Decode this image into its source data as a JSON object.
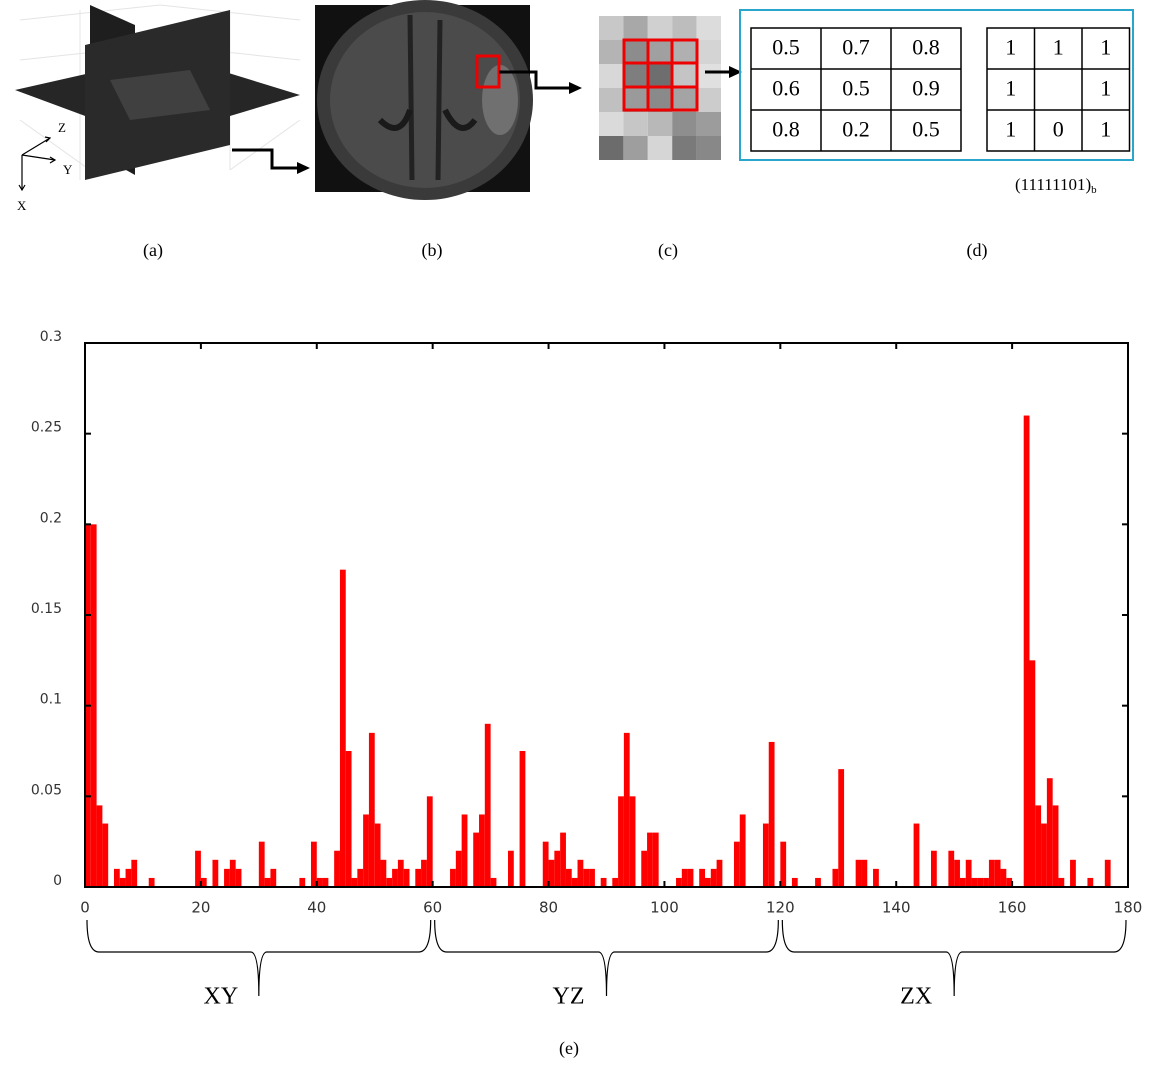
{
  "figure": {
    "captions": [
      "(a)",
      "(b)",
      "(c)",
      "(d)",
      "(e)"
    ],
    "axes3d": [
      "Z",
      "Y",
      "X"
    ],
    "weight_matrix": [
      [
        "0.5",
        "0.7",
        "0.8"
      ],
      [
        "0.6",
        "0.5",
        "0.9"
      ],
      [
        "0.8",
        "0.2",
        "0.5"
      ]
    ],
    "binary_matrix": [
      [
        "1",
        "1",
        "1"
      ],
      [
        "1",
        null,
        "1"
      ],
      [
        "1",
        "0",
        "1"
      ]
    ],
    "binary_code": "(11111101)",
    "binary_subscript": "b"
  },
  "chart_data": {
    "type": "histogram",
    "color": "#ff0000",
    "bins": [
      0,
      1,
      2,
      3,
      4,
      5,
      6,
      7,
      8,
      9,
      10,
      11,
      12,
      13,
      14,
      15,
      16,
      17,
      18,
      19,
      20,
      21,
      22,
      23,
      24,
      25,
      26,
      27,
      28,
      29,
      30,
      31,
      32,
      33,
      34,
      35,
      36,
      37,
      38,
      39,
      40,
      41,
      42,
      43,
      44,
      45,
      46,
      47,
      48,
      49,
      50,
      51,
      52,
      53,
      54,
      55,
      56,
      57,
      58,
      59,
      60,
      61,
      62,
      63,
      64,
      65,
      66,
      67,
      68,
      69,
      70,
      71,
      72,
      73,
      74,
      75,
      76,
      77,
      78,
      79,
      80,
      81,
      82,
      83,
      84,
      85,
      86,
      87,
      88,
      89,
      90,
      91,
      92,
      93,
      94,
      95,
      96,
      97,
      98,
      99,
      100,
      101,
      102,
      103,
      104,
      105,
      106,
      107,
      108,
      109,
      110,
      111,
      112,
      113,
      114,
      115,
      116,
      117,
      118,
      119,
      120,
      121,
      122,
      123,
      124,
      125,
      126,
      127,
      128,
      129,
      130,
      131,
      132,
      133,
      134,
      135,
      136,
      137,
      138,
      139,
      140,
      141,
      142,
      143,
      144,
      145,
      146,
      147,
      148,
      149,
      150,
      151,
      152,
      153,
      154,
      155,
      156,
      157,
      158,
      159,
      160,
      161,
      162,
      163,
      164,
      165,
      166,
      167,
      168,
      169,
      170,
      171,
      172,
      173,
      174,
      175,
      176,
      177,
      178,
      179,
      180
    ],
    "values": [
      0.2,
      0.2,
      0.045,
      0.035,
      0,
      0.01,
      0.005,
      0.01,
      0.015,
      0,
      0,
      0.005,
      0,
      0,
      0,
      0,
      0,
      0,
      0,
      0.02,
      0.005,
      0,
      0.015,
      0,
      0.01,
      0.015,
      0.01,
      0,
      0,
      0,
      0.025,
      0.005,
      0.01,
      0,
      0,
      0,
      0,
      0.005,
      0,
      0.025,
      0.005,
      0.005,
      0,
      0.02,
      0.175,
      0.075,
      0.005,
      0.01,
      0.04,
      0.085,
      0.035,
      0.015,
      0.005,
      0.01,
      0.015,
      0.01,
      0,
      0.01,
      0.015,
      0.05,
      0,
      0,
      0,
      0.01,
      0.02,
      0.04,
      0,
      0.03,
      0.04,
      0.09,
      0.005,
      0,
      0,
      0.02,
      0,
      0.075,
      0,
      0,
      0,
      0.025,
      0.015,
      0.02,
      0.03,
      0.01,
      0.005,
      0.015,
      0.01,
      0.01,
      0,
      0.005,
      0,
      0.005,
      0.05,
      0.085,
      0.05,
      0,
      0.02,
      0.03,
      0.03,
      0,
      0,
      0,
      0.005,
      0.01,
      0.01,
      0,
      0.01,
      0.005,
      0.01,
      0.015,
      0,
      0,
      0.025,
      0.04,
      0,
      0,
      0,
      0.035,
      0.08,
      0,
      0.025,
      0,
      0.005,
      0,
      0,
      0,
      0.005,
      0,
      0,
      0.01,
      0.065,
      0,
      0,
      0.015,
      0.015,
      0,
      0.01,
      0,
      0,
      0,
      0,
      0,
      0,
      0.035,
      0,
      0,
      0.02,
      0,
      0,
      0.02,
      0.015,
      0.005,
      0.015,
      0.005,
      0.005,
      0.005,
      0.015,
      0.015,
      0.01,
      0.005,
      0,
      0,
      0.26,
      0.125,
      0.045,
      0.035,
      0.06,
      0.045,
      0.005,
      0,
      0.015,
      0,
      0,
      0.005,
      0,
      0,
      0.015,
      0,
      0,
      0
    ],
    "xlim": [
      0,
      180
    ],
    "xticks": [
      0,
      20,
      40,
      60,
      80,
      100,
      120,
      140,
      160,
      180
    ],
    "ylim": [
      0,
      0.3
    ],
    "yticks": [
      0,
      0.05,
      0.1,
      0.15,
      0.2,
      0.25,
      0.3
    ],
    "groups": [
      {
        "label": "XY",
        "range": [
          0,
          60
        ]
      },
      {
        "label": "YZ",
        "range": [
          60,
          120
        ]
      },
      {
        "label": "ZX",
        "range": [
          120,
          180
        ]
      }
    ]
  }
}
